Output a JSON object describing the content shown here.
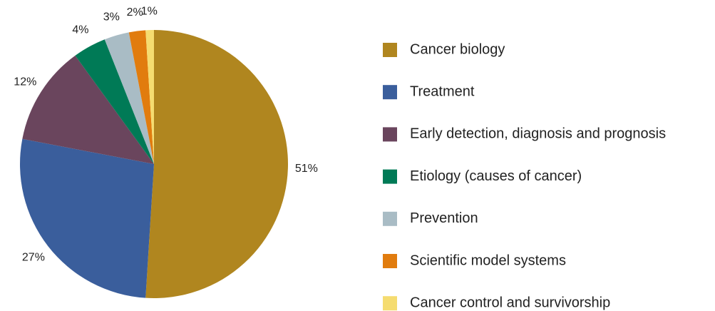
{
  "chart_data": {
    "type": "pie",
    "categories": [
      "Cancer biology",
      "Treatment",
      "Early detection, diagnosis and prognosis",
      "Etiology (causes of cancer)",
      "Prevention",
      "Scientific model systems",
      "Cancer control and survivorship"
    ],
    "values": [
      51,
      27,
      12,
      4,
      3,
      2,
      1
    ],
    "value_labels": [
      "51%",
      "27%",
      "12%",
      "4%",
      "3%",
      "2%",
      "1%"
    ],
    "colors": [
      "#b0861f",
      "#3a5e9c",
      "#6a455d",
      "#007a56",
      "#a9bcc5",
      "#e17c0e",
      "#f5dc70"
    ],
    "legend": "right"
  }
}
